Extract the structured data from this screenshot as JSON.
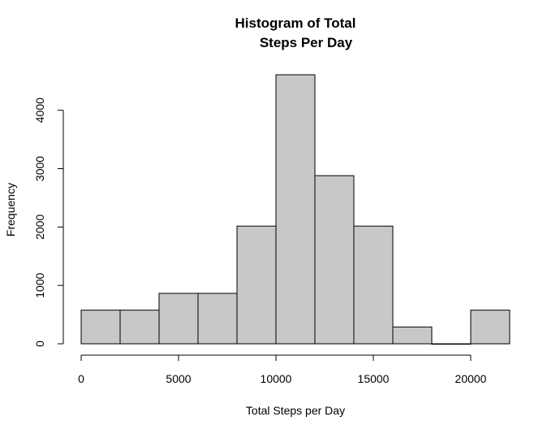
{
  "chart_data": {
    "type": "bar",
    "title_lines": [
      "Histogram of Total",
      "Steps Per Day"
    ],
    "xlabel": "Total Steps per Day",
    "ylabel": "Frequency",
    "bin_edges": [
      0,
      2000,
      4000,
      6000,
      8000,
      10000,
      12000,
      14000,
      16000,
      18000,
      20000,
      22000
    ],
    "values": [
      576,
      576,
      864,
      864,
      2016,
      4608,
      2880,
      2016,
      288,
      0,
      576
    ],
    "xlim": [
      0,
      22000
    ],
    "ylim": [
      0,
      4608
    ],
    "x_ticks": [
      0,
      5000,
      10000,
      15000,
      20000
    ],
    "x_tick_labels": [
      "0",
      "5000",
      "10000",
      "15000",
      "20000"
    ],
    "y_ticks": [
      0,
      1000,
      2000,
      3000,
      4000
    ],
    "y_tick_labels": [
      "0",
      "1000",
      "2000",
      "3000",
      "4000"
    ],
    "bar_fill": "#c8c8c8",
    "bar_stroke": "#000000",
    "grid": false,
    "legend": "none"
  }
}
